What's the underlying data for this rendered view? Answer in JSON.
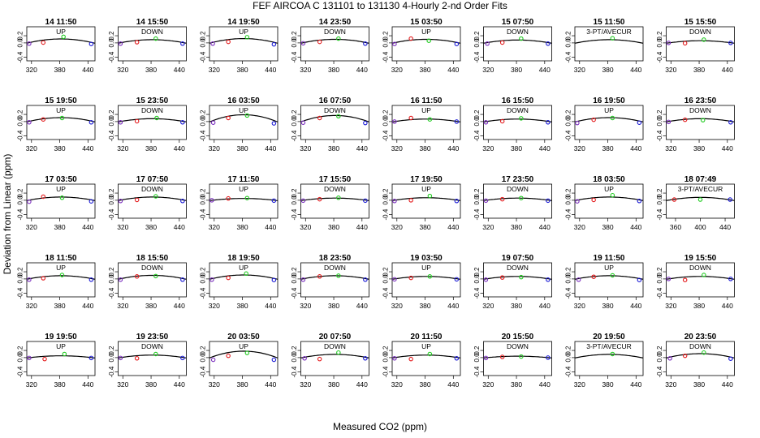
{
  "title": "FEF   AIRCOA C   131101 to 131130   4-Hourly 2-nd Order Fits",
  "xlabel": "Measured CO2 (ppm)",
  "ylabel": "Deviation from Linear (ppm)",
  "colors": {
    "low": "#7b2fbe",
    "mid": "#e41a1c",
    "high": "#22cc22",
    "top": "#1a1ad6",
    "curve": "#000000"
  },
  "chart_data": {
    "type": "scatter",
    "grid": false,
    "xlim_default": [
      310,
      455
    ],
    "xticks_default": [
      320,
      380,
      440
    ],
    "xlim_alt": [
      345,
      455
    ],
    "xticks_alt": [
      360,
      400,
      440
    ],
    "ylim": [
      -0.5,
      0.45
    ],
    "yticks": [
      -0.4,
      0.0,
      0.2
    ],
    "panels": [
      {
        "title": "14 11:50",
        "label": "UP",
        "a": 0.12,
        "pts": [
          [
            315,
            -0.02,
            "low"
          ],
          [
            345,
            0.01,
            "mid"
          ],
          [
            388,
            0.17,
            "high"
          ],
          [
            447,
            -0.03,
            "top"
          ]
        ]
      },
      {
        "title": "14 15:50",
        "label": "DOWN",
        "a": 0.1,
        "pts": [
          [
            315,
            -0.02,
            "low"
          ],
          [
            350,
            0.02,
            "mid"
          ],
          [
            390,
            0.12,
            "high"
          ],
          [
            447,
            -0.02,
            "top"
          ]
        ]
      },
      {
        "title": "14 19:50",
        "label": "UP",
        "a": 0.13,
        "pts": [
          [
            317,
            -0.02,
            "low"
          ],
          [
            350,
            0.03,
            "mid"
          ],
          [
            390,
            0.16,
            "high"
          ],
          [
            447,
            -0.04,
            "top"
          ]
        ]
      },
      {
        "title": "14 23:50",
        "label": "DOWN",
        "a": 0.11,
        "pts": [
          [
            315,
            -0.01,
            "low"
          ],
          [
            350,
            0.03,
            "mid"
          ],
          [
            390,
            0.12,
            "high"
          ],
          [
            447,
            -0.02,
            "top"
          ]
        ]
      },
      {
        "title": "15 03:50",
        "label": "UP",
        "a": 0.11,
        "pts": [
          [
            315,
            -0.03,
            "low"
          ],
          [
            350,
            0.12,
            "mid"
          ],
          [
            388,
            0.06,
            "high"
          ],
          [
            447,
            -0.03,
            "top"
          ]
        ]
      },
      {
        "title": "15 07:50",
        "label": "DOWN",
        "a": 0.09,
        "pts": [
          [
            318,
            -0.02,
            "low"
          ],
          [
            350,
            0.01,
            "mid"
          ],
          [
            390,
            0.12,
            "high"
          ],
          [
            447,
            -0.02,
            "top"
          ]
        ]
      },
      {
        "title": "15 11:50",
        "label": "3-PT/AVECUR",
        "a": 0.1,
        "pts": [
          [
            390,
            0.13,
            "high"
          ]
        ]
      },
      {
        "title": "15 15:50",
        "label": "DOWN",
        "a": 0.07,
        "pts": [
          [
            315,
            0.0,
            "low"
          ],
          [
            350,
            -0.01,
            "mid"
          ],
          [
            390,
            0.09,
            "high"
          ],
          [
            447,
            0.0,
            "top"
          ]
        ]
      },
      {
        "title": "15 19:50",
        "label": "UP",
        "a": 0.12,
        "pts": [
          [
            315,
            -0.02,
            "low"
          ],
          [
            345,
            0.06,
            "mid"
          ],
          [
            385,
            0.1,
            "high"
          ],
          [
            447,
            -0.02,
            "top"
          ]
        ]
      },
      {
        "title": "15 23:50",
        "label": "DOWN",
        "a": 0.09,
        "pts": [
          [
            315,
            -0.02,
            "low"
          ],
          [
            350,
            0.01,
            "mid"
          ],
          [
            392,
            0.1,
            "high"
          ],
          [
            447,
            -0.02,
            "top"
          ]
        ]
      },
      {
        "title": "16 03:50",
        "label": "UP",
        "a": 0.2,
        "pts": [
          [
            318,
            -0.03,
            "low"
          ],
          [
            350,
            0.1,
            "mid"
          ],
          [
            390,
            0.17,
            "high"
          ],
          [
            447,
            -0.05,
            "top"
          ]
        ]
      },
      {
        "title": "16 07:50",
        "label": "DOWN",
        "a": 0.18,
        "pts": [
          [
            315,
            -0.03,
            "low"
          ],
          [
            350,
            0.1,
            "mid"
          ],
          [
            390,
            0.15,
            "high"
          ],
          [
            447,
            -0.04,
            "top"
          ]
        ]
      },
      {
        "title": "16 11:50",
        "label": "UP",
        "a": 0.08,
        "pts": [
          [
            315,
            0.0,
            "low"
          ],
          [
            350,
            0.1,
            "mid"
          ],
          [
            390,
            0.06,
            "high"
          ],
          [
            447,
            0.0,
            "top"
          ]
        ]
      },
      {
        "title": "16 15:50",
        "label": "DOWN",
        "a": 0.08,
        "pts": [
          [
            315,
            -0.02,
            "low"
          ],
          [
            350,
            0.01,
            "mid"
          ],
          [
            390,
            0.09,
            "high"
          ],
          [
            447,
            -0.02,
            "top"
          ]
        ]
      },
      {
        "title": "16 19:50",
        "label": "UP",
        "a": 0.12,
        "pts": [
          [
            315,
            -0.04,
            "low"
          ],
          [
            350,
            0.05,
            "mid"
          ],
          [
            390,
            0.1,
            "high"
          ],
          [
            447,
            -0.03,
            "top"
          ]
        ]
      },
      {
        "title": "16 23:50",
        "label": "DOWN",
        "a": 0.09,
        "pts": [
          [
            315,
            -0.01,
            "low"
          ],
          [
            350,
            0.05,
            "mid"
          ],
          [
            388,
            0.04,
            "high"
          ],
          [
            447,
            -0.02,
            "top"
          ]
        ]
      },
      {
        "title": "17 03:50",
        "label": "UP",
        "a": 0.1,
        "pts": [
          [
            315,
            -0.04,
            "low"
          ],
          [
            345,
            0.1,
            "mid"
          ],
          [
            385,
            0.07,
            "high"
          ],
          [
            447,
            -0.03,
            "top"
          ]
        ]
      },
      {
        "title": "17 07:50",
        "label": "DOWN",
        "a": 0.1,
        "pts": [
          [
            315,
            -0.02,
            "low"
          ],
          [
            350,
            0.01,
            "mid"
          ],
          [
            390,
            0.11,
            "high"
          ],
          [
            447,
            -0.02,
            "top"
          ]
        ]
      },
      {
        "title": "17 11:50",
        "label": "UP",
        "a": 0.06,
        "pts": [
          [
            315,
            0.0,
            "low"
          ],
          [
            350,
            0.05,
            "mid"
          ],
          [
            390,
            0.06,
            "high"
          ],
          [
            447,
            -0.01,
            "top"
          ]
        ]
      },
      {
        "title": "17 15:50",
        "label": "DOWN",
        "a": 0.07,
        "pts": [
          [
            315,
            -0.01,
            "low"
          ],
          [
            350,
            0.03,
            "mid"
          ],
          [
            390,
            0.07,
            "high"
          ],
          [
            447,
            -0.01,
            "top"
          ]
        ]
      },
      {
        "title": "17 19:50",
        "label": "UP",
        "a": 0.08,
        "pts": [
          [
            315,
            -0.02,
            "low"
          ],
          [
            350,
            0.0,
            "mid"
          ],
          [
            390,
            0.12,
            "high"
          ],
          [
            447,
            -0.02,
            "top"
          ]
        ]
      },
      {
        "title": "17 23:50",
        "label": "DOWN",
        "a": 0.07,
        "pts": [
          [
            315,
            -0.01,
            "low"
          ],
          [
            350,
            0.03,
            "mid"
          ],
          [
            390,
            0.06,
            "high"
          ],
          [
            447,
            -0.01,
            "top"
          ]
        ]
      },
      {
        "title": "18 03:50",
        "label": "UP",
        "a": 0.1,
        "pts": [
          [
            315,
            -0.03,
            "low"
          ],
          [
            350,
            0.01,
            "mid"
          ],
          [
            390,
            0.14,
            "high"
          ],
          [
            447,
            -0.02,
            "top"
          ]
        ]
      },
      {
        "title": "18 07:49",
        "label": "3-PT/AVECUR",
        "alt": true,
        "a": 0.09,
        "pts": [
          [
            358,
            0.02,
            "mid"
          ],
          [
            400,
            0.02,
            "high"
          ],
          [
            448,
            0.02,
            "top"
          ]
        ]
      },
      {
        "title": "18 11:50",
        "label": "UP",
        "a": 0.1,
        "pts": [
          [
            315,
            -0.02,
            "low"
          ],
          [
            345,
            0.02,
            "mid"
          ],
          [
            385,
            0.11,
            "high"
          ],
          [
            447,
            -0.02,
            "top"
          ]
        ]
      },
      {
        "title": "18 15:50",
        "label": "DOWN",
        "a": 0.11,
        "pts": [
          [
            315,
            -0.02,
            "low"
          ],
          [
            350,
            0.07,
            "mid"
          ],
          [
            390,
            0.08,
            "high"
          ],
          [
            447,
            -0.02,
            "top"
          ]
        ]
      },
      {
        "title": "18 19:50",
        "label": "UP",
        "a": 0.12,
        "pts": [
          [
            315,
            -0.02,
            "low"
          ],
          [
            350,
            0.03,
            "mid"
          ],
          [
            388,
            0.15,
            "high"
          ],
          [
            447,
            -0.03,
            "top"
          ]
        ]
      },
      {
        "title": "18 23:50",
        "label": "DOWN",
        "a": 0.1,
        "pts": [
          [
            315,
            -0.02,
            "low"
          ],
          [
            350,
            0.07,
            "mid"
          ],
          [
            390,
            0.09,
            "high"
          ],
          [
            447,
            -0.02,
            "top"
          ]
        ]
      },
      {
        "title": "19 03:50",
        "label": "UP",
        "a": 0.08,
        "pts": [
          [
            315,
            -0.01,
            "low"
          ],
          [
            350,
            0.03,
            "mid"
          ],
          [
            390,
            0.07,
            "high"
          ],
          [
            447,
            -0.01,
            "top"
          ]
        ]
      },
      {
        "title": "19 07:50",
        "label": "DOWN",
        "a": 0.08,
        "pts": [
          [
            315,
            -0.02,
            "low"
          ],
          [
            350,
            0.04,
            "mid"
          ],
          [
            390,
            0.05,
            "high"
          ],
          [
            447,
            -0.02,
            "top"
          ]
        ]
      },
      {
        "title": "19 11:50",
        "label": "UP",
        "a": 0.1,
        "pts": [
          [
            318,
            -0.02,
            "low"
          ],
          [
            350,
            0.06,
            "mid"
          ],
          [
            390,
            0.1,
            "high"
          ],
          [
            447,
            -0.03,
            "top"
          ]
        ]
      },
      {
        "title": "19 15:50",
        "label": "DOWN",
        "a": 0.08,
        "pts": [
          [
            315,
            0.0,
            "low"
          ],
          [
            350,
            -0.03,
            "mid"
          ],
          [
            390,
            0.11,
            "high"
          ],
          [
            447,
            0.0,
            "top"
          ]
        ]
      },
      {
        "title": "19 19:50",
        "label": "UP",
        "a": 0.06,
        "pts": [
          [
            315,
            -0.01,
            "low"
          ],
          [
            348,
            -0.04,
            "mid"
          ],
          [
            390,
            0.1,
            "high"
          ],
          [
            447,
            -0.01,
            "top"
          ]
        ]
      },
      {
        "title": "19 23:50",
        "label": "DOWN",
        "a": 0.08,
        "pts": [
          [
            315,
            -0.01,
            "low"
          ],
          [
            350,
            -0.02,
            "mid"
          ],
          [
            390,
            0.1,
            "high"
          ],
          [
            447,
            -0.01,
            "top"
          ]
        ]
      },
      {
        "title": "20 03:50",
        "label": "UP",
        "a": 0.19,
        "pts": [
          [
            318,
            -0.06,
            "low"
          ],
          [
            350,
            0.05,
            "mid"
          ],
          [
            390,
            0.13,
            "high"
          ],
          [
            447,
            -0.06,
            "top"
          ]
        ]
      },
      {
        "title": "20 07:50",
        "label": "DOWN",
        "a": 0.1,
        "pts": [
          [
            318,
            -0.02,
            "low"
          ],
          [
            350,
            -0.04,
            "mid"
          ],
          [
            390,
            0.14,
            "high"
          ],
          [
            447,
            -0.02,
            "top"
          ]
        ]
      },
      {
        "title": "20 11:50",
        "label": "UP",
        "a": 0.08,
        "pts": [
          [
            315,
            -0.02,
            "low"
          ],
          [
            350,
            -0.04,
            "mid"
          ],
          [
            390,
            0.1,
            "high"
          ],
          [
            447,
            -0.02,
            "top"
          ]
        ]
      },
      {
        "title": "20 15:50",
        "label": "DOWN",
        "a": 0.05,
        "pts": [
          [
            315,
            -0.01,
            "low"
          ],
          [
            350,
            0.02,
            "mid"
          ],
          [
            390,
            0.03,
            "high"
          ],
          [
            447,
            0.0,
            "top"
          ]
        ]
      },
      {
        "title": "20 19:50",
        "label": "3-PT/AVECUR",
        "a": 0.1,
        "pts": [
          [
            390,
            0.1,
            "high"
          ]
        ]
      },
      {
        "title": "20 23:50",
        "label": "DOWN",
        "a": 0.12,
        "pts": [
          [
            318,
            -0.02,
            "low"
          ],
          [
            350,
            0.05,
            "mid"
          ],
          [
            390,
            0.14,
            "high"
          ],
          [
            447,
            -0.03,
            "top"
          ]
        ]
      }
    ]
  }
}
